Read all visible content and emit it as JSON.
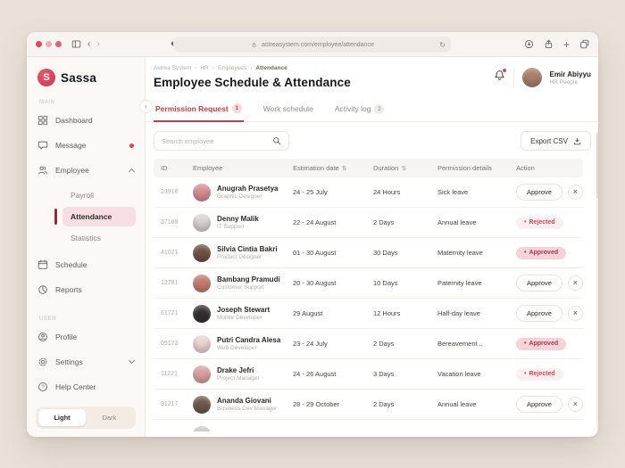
{
  "browser": {
    "url": "astreasystem.com/employee/attendance"
  },
  "brand": {
    "name": "Sassa",
    "letter": "S"
  },
  "sidebar": {
    "section_main": "MAIN",
    "section_user": "USER",
    "dashboard": "Dashboard",
    "message": "Message",
    "employee": "Employee",
    "payroll": "Payroll",
    "attendance": "Attendance",
    "statistics": "Statistics",
    "schedule": "Schedule",
    "reports": "Reports",
    "profile": "Profile",
    "settings": "Settings",
    "help": "Help Center",
    "theme_light": "Light",
    "theme_dark": "Dark"
  },
  "header": {
    "breadcrumb": [
      "Astrea System",
      "HR",
      "Employees",
      "Attendance"
    ],
    "separator": "›",
    "title": "Employee Schedule & Attendance",
    "user_name": "Emir Abiyyu",
    "user_role": "HR People"
  },
  "tabs": [
    {
      "label": "Permission Request",
      "badge": "1"
    },
    {
      "label": "Work schedule",
      "badge": ""
    },
    {
      "label": "Activity log",
      "badge": "2"
    }
  ],
  "toolbar": {
    "search_placeholder": "Search employee",
    "export_label": "Export CSV"
  },
  "table": {
    "columns": [
      "ID",
      "Employee",
      "Estimation date",
      "Duration",
      "Permission details",
      "Action"
    ],
    "approve_label": "Approve",
    "status_labels": {
      "approved": "Approved",
      "rejected": "Rejected"
    },
    "rows": [
      {
        "id": "23918",
        "name": "Anugrah Prasetya",
        "role": "Graphic Designer",
        "date": "24 - 25 July",
        "duration": "24 Hours",
        "permission": "Sick leave",
        "action": "buttons",
        "avatar": "#d98e95"
      },
      {
        "id": "37189",
        "name": "Denny Malik",
        "role": "IT Support",
        "date": "22 - 24 August",
        "duration": "2 Days",
        "permission": "Annual leave",
        "action": "rejected",
        "avatar": "#d9d4d1"
      },
      {
        "id": "41021",
        "name": "Silvia Cintia Bakri",
        "role": "Product Designer",
        "date": "01 - 30 August",
        "duration": "30 Days",
        "permission": "Maternity leave",
        "action": "approved",
        "avatar": "#6f5049"
      },
      {
        "id": "12781",
        "name": "Bambang Pramudi",
        "role": "Customer Support",
        "date": "20 - 30 August",
        "duration": "10 Days",
        "permission": "Paternity leave",
        "action": "buttons",
        "avatar": "#c37e6f"
      },
      {
        "id": "61721",
        "name": "Joseph Stewart",
        "role": "Mobile Developer",
        "date": "29 August",
        "duration": "12 Hours",
        "permission": "Half-day leave",
        "action": "buttons",
        "avatar": "#35302f"
      },
      {
        "id": "09173",
        "name": "Putri Candra Alesa",
        "role": "Web Developer",
        "date": "23 - 24 July",
        "duration": "2 Days",
        "permission": "Bereavement ..",
        "action": "approved",
        "avatar": "#ecd6d2"
      },
      {
        "id": "11221",
        "name": "Drake Jefri",
        "role": "Project Manager",
        "date": "24 - 26 August",
        "duration": "3 Days",
        "permission": "Vacation leave",
        "action": "rejected",
        "avatar": "#dba0a0"
      },
      {
        "id": "91217",
        "name": "Ananda Giovani",
        "role": "Business Dev Manager",
        "date": "28 - 29 October",
        "duration": "2 Days",
        "permission": "Annual leave",
        "action": "buttons",
        "avatar": "#6e5a4e"
      }
    ]
  },
  "icons": {
    "sort": "⇅",
    "close": "×",
    "plus": "+",
    "reload": "↻",
    "shield": "◐",
    "back": "‹",
    "forward": "›",
    "collapse": "‹",
    "status_dot": "•"
  },
  "colors": {
    "brand": "#d6455c",
    "accent_dark": "#b93f4d",
    "approved_bg": "#f5d3d9",
    "approved_text": "#a53a49",
    "rejected_bg": "#fdeff1",
    "rejected_text": "#cd4a57",
    "active_item_bg": "#f7dee2"
  }
}
